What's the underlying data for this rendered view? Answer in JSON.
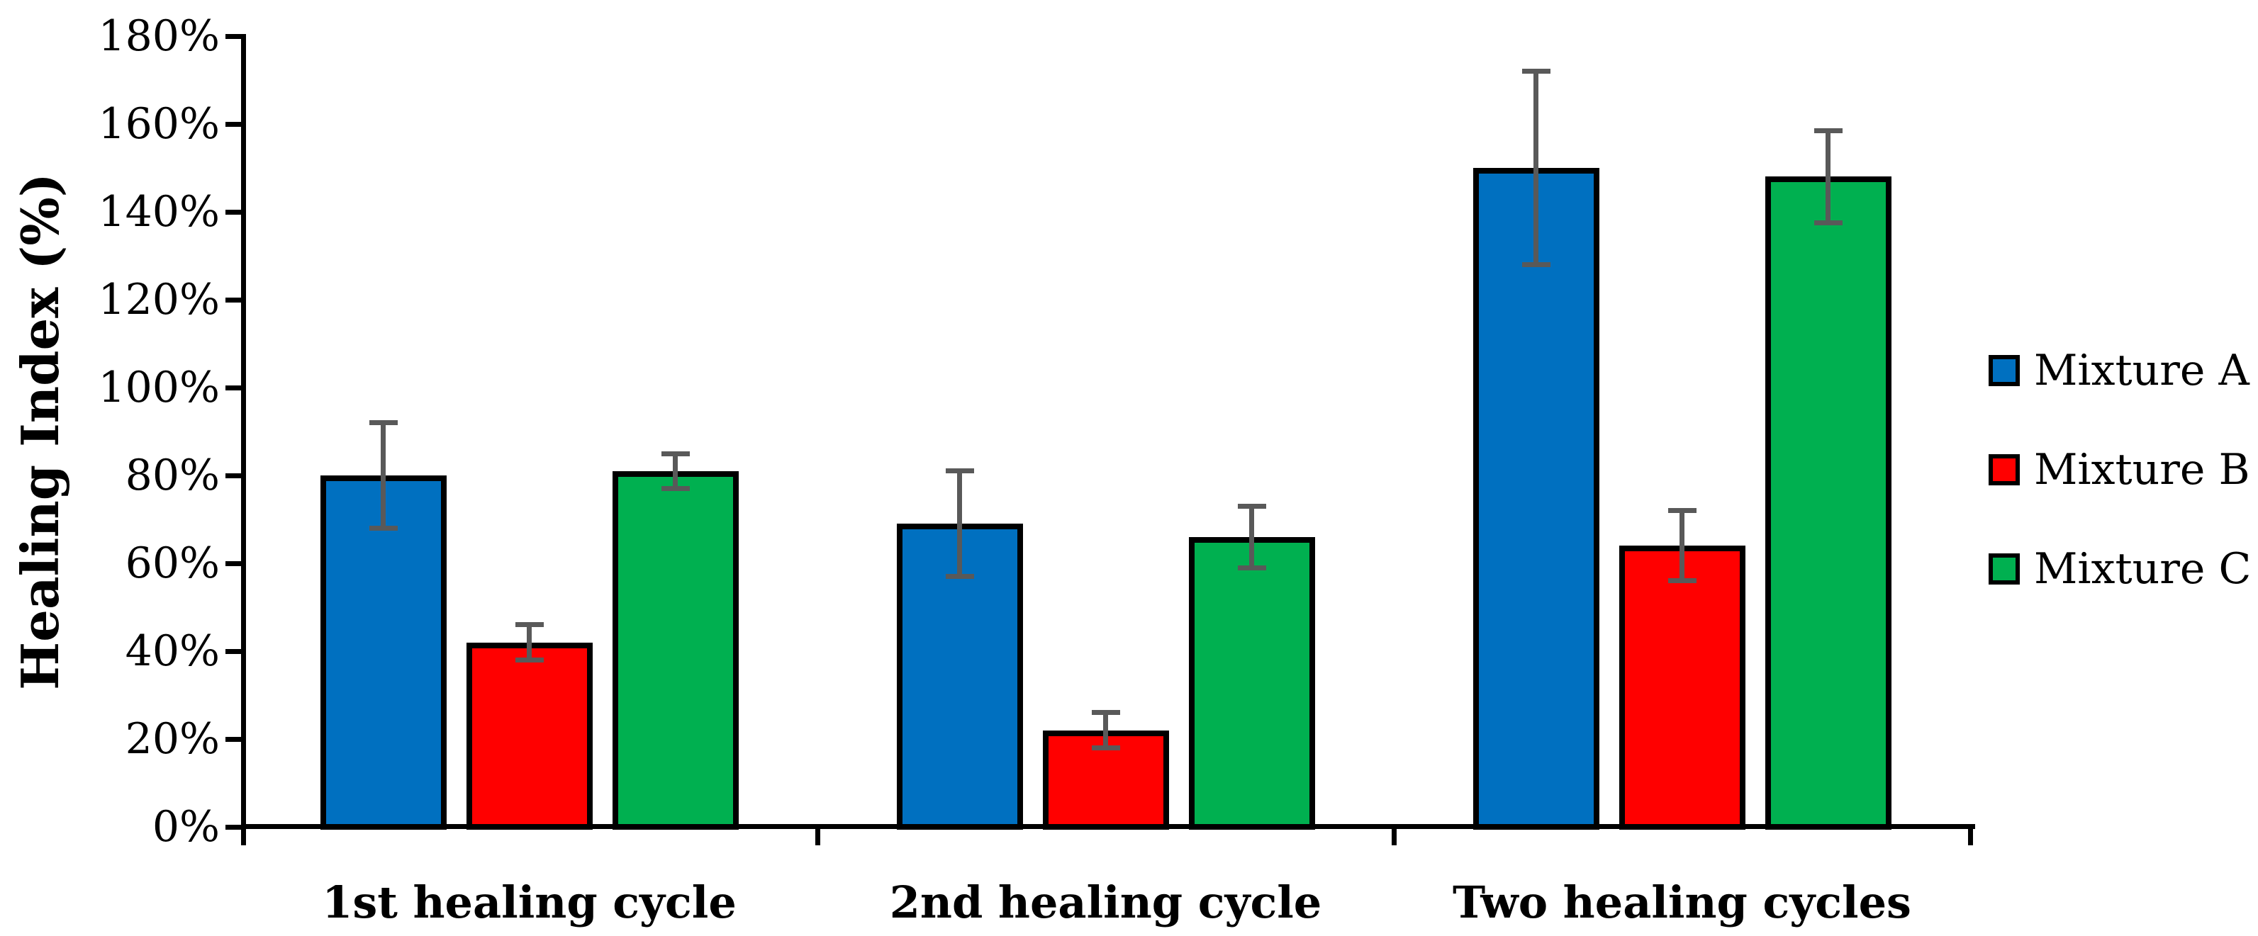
{
  "figure": {
    "background": "#FFFFFF"
  },
  "chart_data": {
    "type": "bar",
    "title": "",
    "xlabel": "",
    "ylabel": "Healing Index (%)",
    "categories": [
      "1st healing cycle",
      "2nd healing cycle",
      "Two healing cycles"
    ],
    "series": [
      {
        "name": "Mixture A",
        "color": "#0070C0",
        "values": [
          80,
          69,
          150
        ],
        "errors": [
          12,
          12,
          22
        ]
      },
      {
        "name": "Mixture B",
        "color": "#FF0000",
        "values": [
          42,
          22,
          64
        ],
        "errors": [
          4,
          4,
          8
        ]
      },
      {
        "name": "Mixture C",
        "color": "#00B050",
        "values": [
          81,
          66,
          148
        ],
        "errors": [
          4,
          7,
          10.5
        ]
      }
    ],
    "ylim": [
      0,
      180
    ],
    "ytick_step": 20,
    "ytick_labels": [
      "0%",
      "20%",
      "40%",
      "60%",
      "80%",
      "100%",
      "120%",
      "140%",
      "160%",
      "180%"
    ],
    "grid": false,
    "legend_position": "right",
    "colors": {
      "axis": "#000000",
      "error_bar": "#595959",
      "background": "#FFFFFF"
    }
  }
}
